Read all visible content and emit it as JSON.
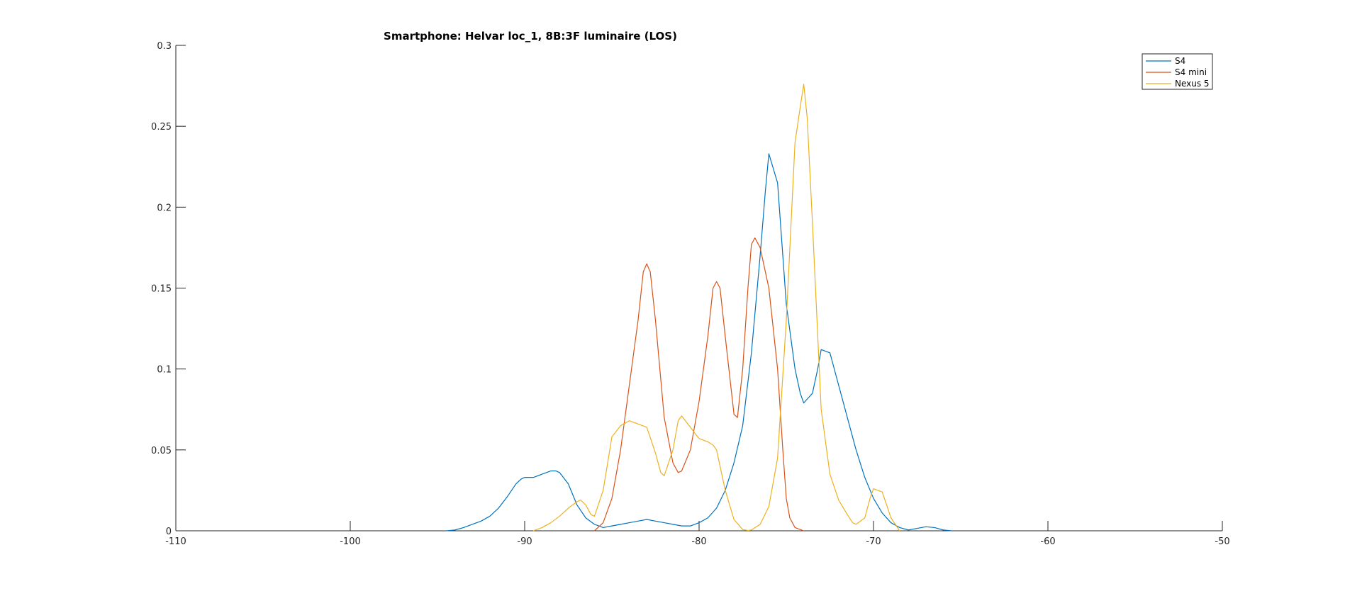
{
  "chart_data": {
    "type": "line",
    "title": "Smartphone: Helvar loc_1, 8B:3F luminaire (LOS)",
    "xlabel": "",
    "ylabel": "",
    "xlim": [
      -110,
      -50
    ],
    "ylim": [
      0,
      0.3
    ],
    "xticks": [
      -110,
      -100,
      -90,
      -80,
      -70,
      -60,
      -50
    ],
    "yticks": [
      0,
      0.05,
      0.1,
      0.15,
      0.2,
      0.25,
      0.3
    ],
    "xtick_labels": [
      "-110",
      "-100",
      "-90",
      "-80",
      "-70",
      "-60",
      "-50"
    ],
    "ytick_labels": [
      "0",
      "0.05",
      "0.1",
      "0.15",
      "0.2",
      "0.25",
      "0.3"
    ],
    "grid": false,
    "legend_position": "top-right",
    "series": [
      {
        "name": "S4",
        "color": "#0072BD",
        "x": [
          -94.5,
          -94,
          -93.5,
          -93,
          -92.5,
          -92,
          -91.5,
          -91,
          -90.5,
          -90.2,
          -90,
          -89.5,
          -89,
          -88.5,
          -88.2,
          -88,
          -87.5,
          -87,
          -86.5,
          -86,
          -85.5,
          -85,
          -84.5,
          -84,
          -83.5,
          -83,
          -82.5,
          -82,
          -81.5,
          -81,
          -80.5,
          -80,
          -79.5,
          -79,
          -78.5,
          -78,
          -77.5,
          -77,
          -76.5,
          -76.2,
          -76,
          -75.5,
          -75,
          -74.5,
          -74.2,
          -74,
          -73.5,
          -73.2,
          -73,
          -72.5,
          -72,
          -71.5,
          -71,
          -70.5,
          -70,
          -69.5,
          -69,
          -68.5,
          -68,
          -67.5,
          -67,
          -66.5,
          -66,
          -65.5
        ],
        "y": [
          0,
          0.0005,
          0.002,
          0.004,
          0.006,
          0.009,
          0.014,
          0.021,
          0.029,
          0.032,
          0.033,
          0.033,
          0.035,
          0.037,
          0.037,
          0.036,
          0.029,
          0.016,
          0.008,
          0.004,
          0.002,
          0.003,
          0.004,
          0.005,
          0.006,
          0.007,
          0.006,
          0.005,
          0.004,
          0.003,
          0.003,
          0.005,
          0.008,
          0.014,
          0.025,
          0.042,
          0.065,
          0.11,
          0.17,
          0.21,
          0.233,
          0.215,
          0.14,
          0.1,
          0.085,
          0.079,
          0.085,
          0.1,
          0.112,
          0.11,
          0.09,
          0.07,
          0.05,
          0.033,
          0.02,
          0.011,
          0.005,
          0.002,
          0.0005,
          0.0015,
          0.0025,
          0.002,
          0.0005,
          0
        ]
      },
      {
        "name": "S4 mini",
        "color": "#D95319",
        "x": [
          -86,
          -85.5,
          -85,
          -84.5,
          -84,
          -83.5,
          -83.2,
          -83,
          -82.8,
          -82.5,
          -82,
          -81.5,
          -81.2,
          -81,
          -80.5,
          -80,
          -79.5,
          -79.2,
          -79,
          -78.8,
          -78.5,
          -78,
          -77.8,
          -77.5,
          -77.2,
          -77,
          -76.8,
          -76.5,
          -76,
          -75.5,
          -75.2,
          -75,
          -74.8,
          -74.5,
          -74
        ],
        "y": [
          0,
          0.005,
          0.02,
          0.05,
          0.09,
          0.13,
          0.16,
          0.165,
          0.16,
          0.13,
          0.07,
          0.042,
          0.036,
          0.037,
          0.05,
          0.08,
          0.12,
          0.15,
          0.154,
          0.15,
          0.12,
          0.072,
          0.07,
          0.1,
          0.15,
          0.177,
          0.181,
          0.175,
          0.15,
          0.1,
          0.05,
          0.02,
          0.008,
          0.002,
          0
        ]
      },
      {
        "name": "Nexus 5",
        "color": "#EDB120",
        "x": [
          -89.5,
          -89,
          -88.5,
          -88,
          -87.5,
          -87,
          -86.8,
          -86.5,
          -86.2,
          -86,
          -85.5,
          -85,
          -84.5,
          -84,
          -83.5,
          -83,
          -82.5,
          -82.2,
          -82,
          -81.5,
          -81.2,
          -81,
          -80.5,
          -80,
          -79.5,
          -79.2,
          -79,
          -78.5,
          -78,
          -77.5,
          -77.2,
          -77,
          -76.5,
          -76,
          -75.5,
          -75,
          -74.5,
          -74.2,
          -74,
          -73.8,
          -73.5,
          -73,
          -72.5,
          -72,
          -71.5,
          -71.2,
          -71,
          -70.5,
          -70.2,
          -70,
          -69.5,
          -69,
          -68.5
        ],
        "y": [
          0,
          0.002,
          0.005,
          0.009,
          0.014,
          0.018,
          0.019,
          0.016,
          0.01,
          0.009,
          0.025,
          0.058,
          0.065,
          0.068,
          0.066,
          0.064,
          0.048,
          0.036,
          0.034,
          0.05,
          0.068,
          0.071,
          0.064,
          0.057,
          0.055,
          0.053,
          0.05,
          0.025,
          0.007,
          0.0008,
          0.0002,
          0.0005,
          0.004,
          0.015,
          0.045,
          0.13,
          0.24,
          0.262,
          0.276,
          0.255,
          0.19,
          0.075,
          0.035,
          0.019,
          0.01,
          0.005,
          0.004,
          0.008,
          0.02,
          0.026,
          0.024,
          0.008,
          0
        ]
      }
    ]
  }
}
